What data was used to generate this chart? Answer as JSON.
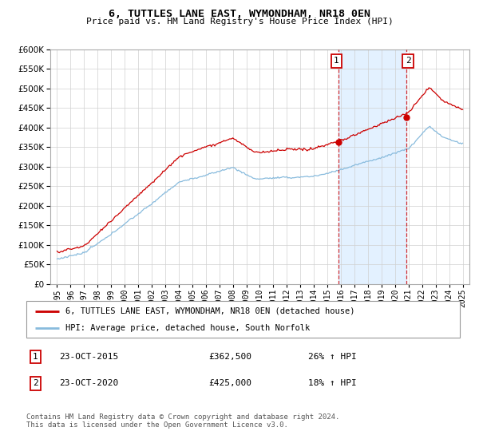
{
  "title": "6, TUTTLES LANE EAST, WYMONDHAM, NR18 0EN",
  "subtitle": "Price paid vs. HM Land Registry's House Price Index (HPI)",
  "ylim": [
    0,
    600000
  ],
  "xlim_start": 1994.5,
  "xlim_end": 2025.5,
  "sale1_x": 2015.81,
  "sale1_y": 362500,
  "sale2_x": 2020.81,
  "sale2_y": 425000,
  "legend_line1": "6, TUTTLES LANE EAST, WYMONDHAM, NR18 0EN (detached house)",
  "legend_line2": "HPI: Average price, detached house, South Norfolk",
  "annotation1_date": "23-OCT-2015",
  "annotation1_price": "£362,500",
  "annotation1_pct": "26% ↑ HPI",
  "annotation2_date": "23-OCT-2020",
  "annotation2_price": "£425,000",
  "annotation2_pct": "18% ↑ HPI",
  "footer": "Contains HM Land Registry data © Crown copyright and database right 2024.\nThis data is licensed under the Open Government Licence v3.0.",
  "hpi_color": "#88bbdd",
  "price_color": "#cc0000",
  "shading_color": "#ddeeff",
  "vline_color": "#cc0000",
  "bg_color": "#ffffff"
}
